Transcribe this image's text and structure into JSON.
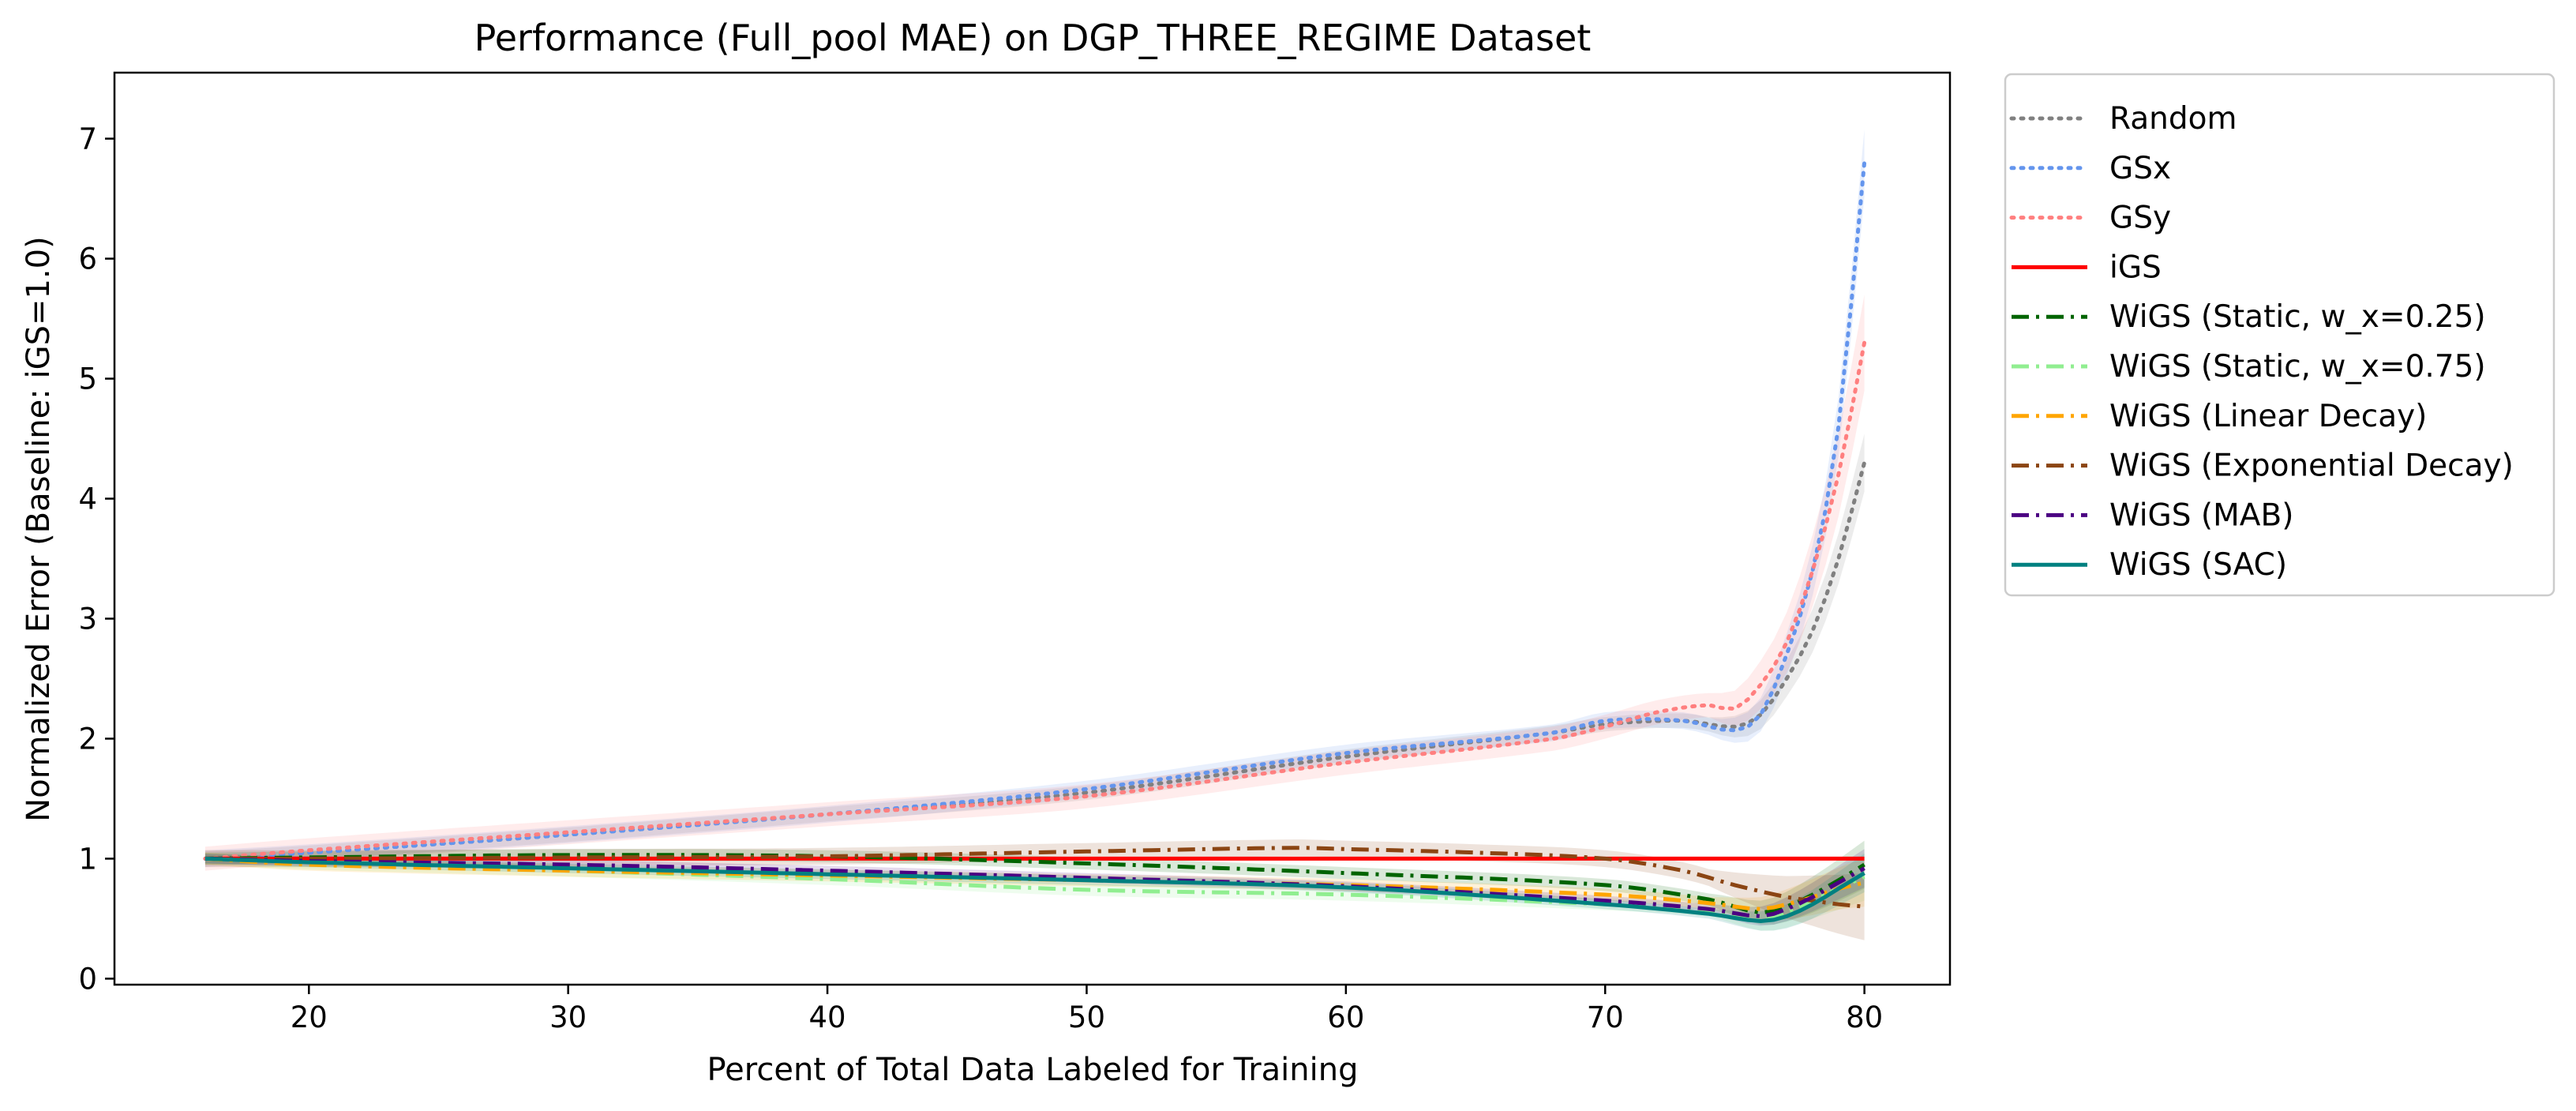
{
  "chart_data": {
    "type": "line",
    "title": "Performance (Full_pool MAE) on DGP_THREE_REGIME Dataset",
    "xlabel": "Percent of Total Data Labeled for Training",
    "ylabel": "Normalized Error (Baseline: iGS=1.0)",
    "xlim": [
      12.5,
      83.3
    ],
    "ylim": [
      -0.05,
      7.55
    ],
    "xticks": [
      20,
      30,
      40,
      50,
      60,
      70,
      80
    ],
    "yticks": [
      0,
      1,
      2,
      3,
      4,
      5,
      6,
      7
    ],
    "grid": false,
    "legend_position": "outside-right-top",
    "series": [
      {
        "name": "Random",
        "color": "#808080",
        "dash": "dotted",
        "band": 0.06,
        "points": [
          [
            16,
            1.0
          ],
          [
            20,
            1.05
          ],
          [
            30,
            1.2
          ],
          [
            40,
            1.37
          ],
          [
            50,
            1.55
          ],
          [
            60,
            1.85
          ],
          [
            68,
            2.05
          ],
          [
            70,
            2.12
          ],
          [
            73,
            2.15
          ],
          [
            75,
            2.1
          ],
          [
            76,
            2.2
          ],
          [
            77,
            2.5
          ],
          [
            78,
            2.9
          ],
          [
            79,
            3.5
          ],
          [
            80,
            4.3
          ]
        ]
      },
      {
        "name": "GSx",
        "color": "#6495ED",
        "dash": "dotted",
        "band": 0.07,
        "points": [
          [
            16,
            1.0
          ],
          [
            20,
            1.05
          ],
          [
            30,
            1.2
          ],
          [
            40,
            1.37
          ],
          [
            50,
            1.58
          ],
          [
            60,
            1.88
          ],
          [
            68,
            2.05
          ],
          [
            70,
            2.15
          ],
          [
            73,
            2.15
          ],
          [
            75,
            2.07
          ],
          [
            76,
            2.2
          ],
          [
            77,
            2.7
          ],
          [
            78,
            3.4
          ],
          [
            79,
            4.6
          ],
          [
            80,
            6.8
          ]
        ]
      },
      {
        "name": "GSy",
        "color": "#FF7F7F",
        "dash": "dotted",
        "band": 0.1,
        "points": [
          [
            16,
            1.0
          ],
          [
            20,
            1.07
          ],
          [
            30,
            1.22
          ],
          [
            40,
            1.37
          ],
          [
            50,
            1.52
          ],
          [
            60,
            1.8
          ],
          [
            68,
            2.0
          ],
          [
            70,
            2.1
          ],
          [
            72,
            2.22
          ],
          [
            74,
            2.28
          ],
          [
            75,
            2.25
          ],
          [
            76,
            2.45
          ],
          [
            77,
            2.8
          ],
          [
            78,
            3.4
          ],
          [
            79,
            4.2
          ],
          [
            80,
            5.3
          ]
        ]
      },
      {
        "name": "iGS",
        "color": "#FF0000",
        "dash": "solid",
        "band": 0,
        "points": [
          [
            16,
            1.0
          ],
          [
            80,
            1.0
          ]
        ]
      },
      {
        "name": "WiGS (Static, w_x=0.25)",
        "color": "#006400",
        "dash": "dashdot",
        "band": 0.05,
        "points": [
          [
            16,
            1.0
          ],
          [
            20,
            1.01
          ],
          [
            30,
            1.03
          ],
          [
            40,
            1.02
          ],
          [
            50,
            0.96
          ],
          [
            60,
            0.88
          ],
          [
            70,
            0.78
          ],
          [
            74,
            0.66
          ],
          [
            76,
            0.55
          ],
          [
            77,
            0.6
          ],
          [
            78,
            0.7
          ],
          [
            79,
            0.82
          ],
          [
            80,
            0.95
          ]
        ]
      },
      {
        "name": "WiGS (Static, w_x=0.75)",
        "color": "#90EE90",
        "dash": "dashdot",
        "band": 0.05,
        "points": [
          [
            16,
            1.0
          ],
          [
            20,
            0.96
          ],
          [
            30,
            0.9
          ],
          [
            40,
            0.83
          ],
          [
            50,
            0.74
          ],
          [
            60,
            0.7
          ],
          [
            70,
            0.62
          ],
          [
            74,
            0.57
          ],
          [
            76,
            0.5
          ],
          [
            77,
            0.55
          ],
          [
            78,
            0.65
          ],
          [
            79,
            0.75
          ],
          [
            80,
            0.85
          ]
        ]
      },
      {
        "name": "WiGS (Linear Decay)",
        "color": "#FFA500",
        "dash": "dashdot",
        "band": 0.05,
        "points": [
          [
            16,
            1.0
          ],
          [
            20,
            0.95
          ],
          [
            30,
            0.9
          ],
          [
            40,
            0.86
          ],
          [
            50,
            0.82
          ],
          [
            60,
            0.78
          ],
          [
            70,
            0.7
          ],
          [
            74,
            0.63
          ],
          [
            76,
            0.58
          ],
          [
            77,
            0.62
          ],
          [
            78,
            0.68
          ],
          [
            79,
            0.75
          ],
          [
            80,
            0.8
          ]
        ]
      },
      {
        "name": "WiGS (Exponential Decay)",
        "color": "#8B4513",
        "dash": "dashdot",
        "band": 0.07,
        "points": [
          [
            16,
            1.0
          ],
          [
            20,
            1.0
          ],
          [
            30,
            1.01
          ],
          [
            40,
            1.02
          ],
          [
            50,
            1.06
          ],
          [
            58,
            1.09
          ],
          [
            60,
            1.08
          ],
          [
            65,
            1.05
          ],
          [
            70,
            1.0
          ],
          [
            73,
            0.9
          ],
          [
            75,
            0.78
          ],
          [
            77,
            0.68
          ],
          [
            78,
            0.65
          ],
          [
            79,
            0.62
          ],
          [
            80,
            0.6
          ]
        ]
      },
      {
        "name": "WiGS (MAB)",
        "color": "#4B0082",
        "dash": "dashdot",
        "band": 0.04,
        "points": [
          [
            16,
            1.0
          ],
          [
            20,
            0.98
          ],
          [
            30,
            0.95
          ],
          [
            40,
            0.9
          ],
          [
            50,
            0.84
          ],
          [
            60,
            0.77
          ],
          [
            70,
            0.65
          ],
          [
            74,
            0.58
          ],
          [
            76,
            0.52
          ],
          [
            77,
            0.58
          ],
          [
            78,
            0.68
          ],
          [
            79,
            0.8
          ],
          [
            80,
            0.92
          ]
        ]
      },
      {
        "name": "WiGS (SAC)",
        "color": "#008080",
        "dash": "solid",
        "band": 0.04,
        "points": [
          [
            16,
            1.0
          ],
          [
            20,
            0.97
          ],
          [
            30,
            0.92
          ],
          [
            40,
            0.87
          ],
          [
            50,
            0.82
          ],
          [
            60,
            0.76
          ],
          [
            70,
            0.62
          ],
          [
            74,
            0.54
          ],
          [
            76,
            0.48
          ],
          [
            77,
            0.52
          ],
          [
            78,
            0.62
          ],
          [
            79,
            0.75
          ],
          [
            80,
            0.88
          ]
        ]
      }
    ]
  }
}
